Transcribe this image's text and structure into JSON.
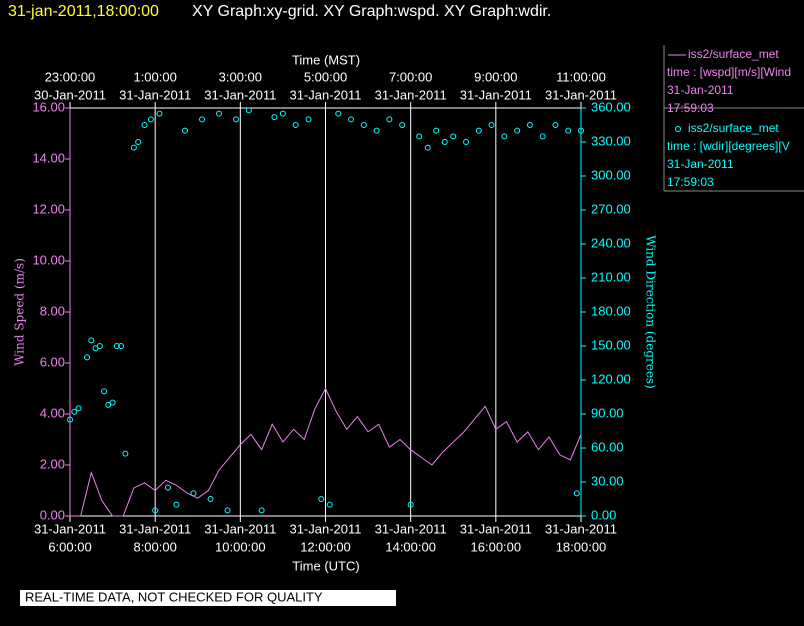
{
  "chart_data": {
    "type": "line-scatter",
    "header": "31-jan-2011,18:00:00",
    "title": "XY Graph:xy-grid.  XY Graph:wspd.  XY Graph:wdir.",
    "x_label": "Time (UTC)",
    "x2_label": "Time (MST)",
    "y_label": "Wind Speed (m/s)",
    "y2_label": "Wind Direction (degrees)",
    "footer": "REAL-TIME DATA, NOT CHECKED FOR QUALITY",
    "xlim": [
      6,
      18
    ],
    "xticks": [
      {
        "value": 6,
        "label": "6:00:00",
        "date": "31-Jan-2011"
      },
      {
        "value": 8,
        "label": "8:00:00",
        "date": "31-Jan-2011"
      },
      {
        "value": 10,
        "label": "10:00:00",
        "date": "31-Jan-2011"
      },
      {
        "value": 12,
        "label": "12:00:00",
        "date": "31-Jan-2011"
      },
      {
        "value": 14,
        "label": "14:00:00",
        "date": "31-Jan-2011"
      },
      {
        "value": 16,
        "label": "16:00:00",
        "date": "31-Jan-2011"
      },
      {
        "value": 18,
        "label": "18:00:00",
        "date": "31-Jan-2011"
      }
    ],
    "x2ticks": [
      {
        "value": 6,
        "label": "23:00:00",
        "date": "30-Jan-2011"
      },
      {
        "value": 8,
        "label": "1:00:00",
        "date": "31-Jan-2011"
      },
      {
        "value": 10,
        "label": "3:00:00",
        "date": "31-Jan-2011"
      },
      {
        "value": 12,
        "label": "5:00:00",
        "date": "31-Jan-2011"
      },
      {
        "value": 14,
        "label": "7:00:00",
        "date": "31-Jan-2011"
      },
      {
        "value": 16,
        "label": "9:00:00",
        "date": "31-Jan-2011"
      },
      {
        "value": 18,
        "label": "11:00:00",
        "date": "31-Jan-2011"
      }
    ],
    "ylim": [
      0,
      16
    ],
    "yticks": [
      {
        "value": 0,
        "label": "0.00"
      },
      {
        "value": 2,
        "label": "2.00"
      },
      {
        "value": 4,
        "label": "4.00"
      },
      {
        "value": 6,
        "label": "6.00"
      },
      {
        "value": 8,
        "label": "8.00"
      },
      {
        "value": 10,
        "label": "10.00"
      },
      {
        "value": 12,
        "label": "12.00"
      },
      {
        "value": 14,
        "label": "14.00"
      },
      {
        "value": 16,
        "label": "16.00"
      }
    ],
    "y2lim": [
      0,
      360
    ],
    "y2ticks": [
      {
        "value": 0,
        "label": "0.00"
      },
      {
        "value": 30,
        "label": "30.00"
      },
      {
        "value": 60,
        "label": "60.00"
      },
      {
        "value": 90,
        "label": "90.00"
      },
      {
        "value": 120,
        "label": "120.00"
      },
      {
        "value": 150,
        "label": "150.00"
      },
      {
        "value": 180,
        "label": "180.00"
      },
      {
        "value": 210,
        "label": "210.00"
      },
      {
        "value": 240,
        "label": "240.00"
      },
      {
        "value": 270,
        "label": "270.00"
      },
      {
        "value": 300,
        "label": "300.00"
      },
      {
        "value": 330,
        "label": "330.00"
      },
      {
        "value": 360,
        "label": "360.00"
      }
    ],
    "grid": true,
    "series": [
      {
        "name": "iss2/surface_met",
        "legend": [
          "time : [wspd][m/s][Wind",
          "31-Jan-2011",
          "17:59:03"
        ],
        "color": "#ee82ee",
        "kind": "line",
        "x": [
          6,
          6.25,
          6.5,
          6.75,
          7,
          7.25,
          7.5,
          7.75,
          8,
          8.25,
          8.5,
          8.75,
          9,
          9.25,
          9.5,
          9.75,
          10,
          10.25,
          10.5,
          10.75,
          11,
          11.25,
          11.5,
          11.75,
          12,
          12.25,
          12.5,
          12.75,
          13,
          13.25,
          13.5,
          13.75,
          14,
          14.25,
          14.5,
          14.75,
          15,
          15.25,
          15.5,
          15.75,
          16,
          16.25,
          16.5,
          16.75,
          17,
          17.25,
          17.5,
          17.75,
          18
        ],
        "values": [
          0,
          0,
          1.7,
          0.6,
          0,
          0,
          1.1,
          1.3,
          1,
          1.4,
          1.2,
          0.9,
          0.7,
          1,
          1.8,
          2.3,
          2.8,
          3.2,
          2.6,
          3.6,
          2.9,
          3.4,
          3,
          4.2,
          5,
          4.1,
          3.4,
          3.9,
          3.3,
          3.6,
          2.7,
          3,
          2.6,
          2.3,
          2,
          2.5,
          2.9,
          3.3,
          3.8,
          4.3,
          3.4,
          3.7,
          2.9,
          3.3,
          2.6,
          3.1,
          2.4,
          2.2,
          3.2
        ]
      },
      {
        "name": "iss2/surface_met",
        "legend": [
          "time : [wdir][degrees][V",
          "31-Jan-2011",
          "17:59:03"
        ],
        "color": "#00ffff",
        "kind": "scatter",
        "axis": "y2",
        "x": [
          6,
          6.1,
          6.2,
          6.4,
          6.5,
          6.6,
          6.7,
          6.8,
          6.9,
          7,
          7.1,
          7.2,
          7.3,
          7.5,
          7.6,
          7.75,
          7.9,
          8,
          8.1,
          8.3,
          8.5,
          8.7,
          8.9,
          9.1,
          9.3,
          9.5,
          9.7,
          9.9,
          10.2,
          10.5,
          10.8,
          11,
          11.3,
          11.6,
          11.9,
          12.1,
          12.3,
          12.6,
          12.9,
          13.2,
          13.5,
          13.8,
          14,
          14.2,
          14.4,
          14.6,
          14.8,
          15,
          15.3,
          15.6,
          15.9,
          16.2,
          16.5,
          16.8,
          17.1,
          17.4,
          17.7,
          17.9,
          18
        ],
        "values": [
          85,
          92,
          95,
          140,
          155,
          148,
          150,
          110,
          98,
          100,
          150,
          150,
          55,
          325,
          330,
          345,
          350,
          5,
          355,
          25,
          10,
          340,
          20,
          350,
          15,
          355,
          5,
          350,
          358,
          5,
          352,
          355,
          345,
          350,
          15,
          10,
          355,
          350,
          345,
          340,
          350,
          345,
          10,
          335,
          325,
          340,
          330,
          335,
          330,
          340,
          345,
          335,
          340,
          345,
          335,
          345,
          340,
          20,
          340
        ]
      }
    ]
  }
}
